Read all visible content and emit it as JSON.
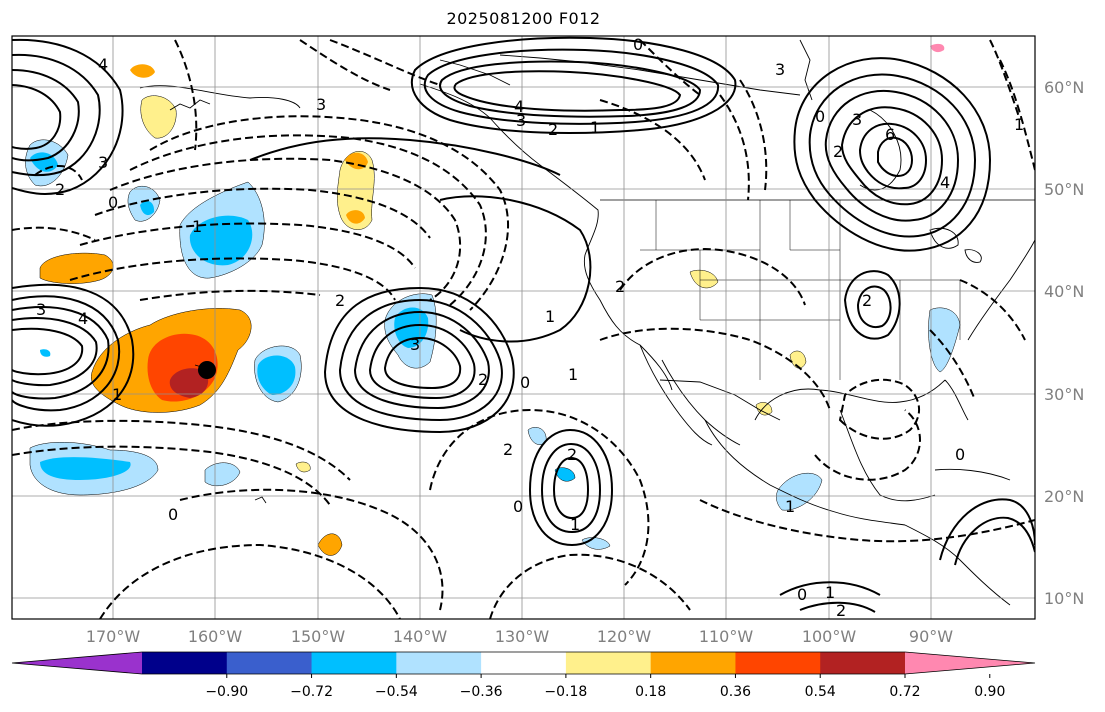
{
  "title": "2025081200 F012",
  "lon_labels": [
    "170°W",
    "160°W",
    "150°W",
    "140°W",
    "130°W",
    "120°W",
    "110°W",
    "100°W",
    "90°W"
  ],
  "lat_labels": [
    "60°N",
    "50°N",
    "40°N",
    "30°N",
    "20°N",
    "10°N"
  ],
  "colorbar": {
    "labels": [
      "−0.90",
      "−0.72",
      "−0.54",
      "−0.36",
      "−0.18",
      "0.18",
      "0.36",
      "0.54",
      "0.72",
      "0.90"
    ],
    "colors": [
      "#9a32cd",
      "#00008b",
      "#3a5fcd",
      "#00bfff",
      "#b0e2ff",
      "#ffffff",
      "#fff08c",
      "#ffa500",
      "#ff4500",
      "#b22222",
      "#ff88b0"
    ]
  },
  "contour_labels": [
    "0",
    "2",
    "4",
    "3",
    "1",
    "3",
    "4",
    "2",
    "3",
    "1",
    "0",
    "2",
    "3",
    "6",
    "4",
    "1",
    "0",
    "3",
    "2",
    "1",
    "0",
    "1",
    "2",
    "3",
    "1",
    "2",
    "1",
    "0",
    "2",
    "2",
    "1",
    "0",
    "0",
    "1",
    "2",
    "4",
    "3",
    "0",
    "2"
  ]
}
